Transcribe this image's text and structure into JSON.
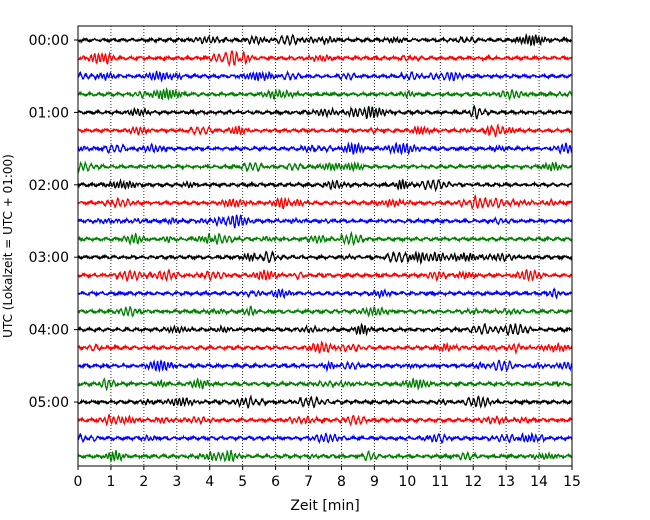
{
  "chart_data": {
    "type": "line",
    "title": "",
    "xlabel": "Zeit  [min]",
    "ylabel": "UTC (Lokalzeit = UTC + 01:00)",
    "xlim": [
      0,
      15
    ],
    "x_ticks": [
      "0",
      "1",
      "2",
      "3",
      "4",
      "5",
      "6",
      "7",
      "8",
      "9",
      "10",
      "11",
      "12",
      "13",
      "14",
      "15"
    ],
    "y_ticks": [
      "00:00",
      "01:00",
      "02:00",
      "03:00",
      "04:00",
      "05:00"
    ],
    "grid": "vertical dotted lines at each minute",
    "trace_count": 24,
    "minutes_per_trace": 15,
    "trace_colors": [
      "#000000",
      "#ff0000",
      "#0000ff",
      "#007f00"
    ],
    "notes": "Helicorder-style seismogram: one 15-minute trace per row, colors cycle black, red, blue, green."
  }
}
